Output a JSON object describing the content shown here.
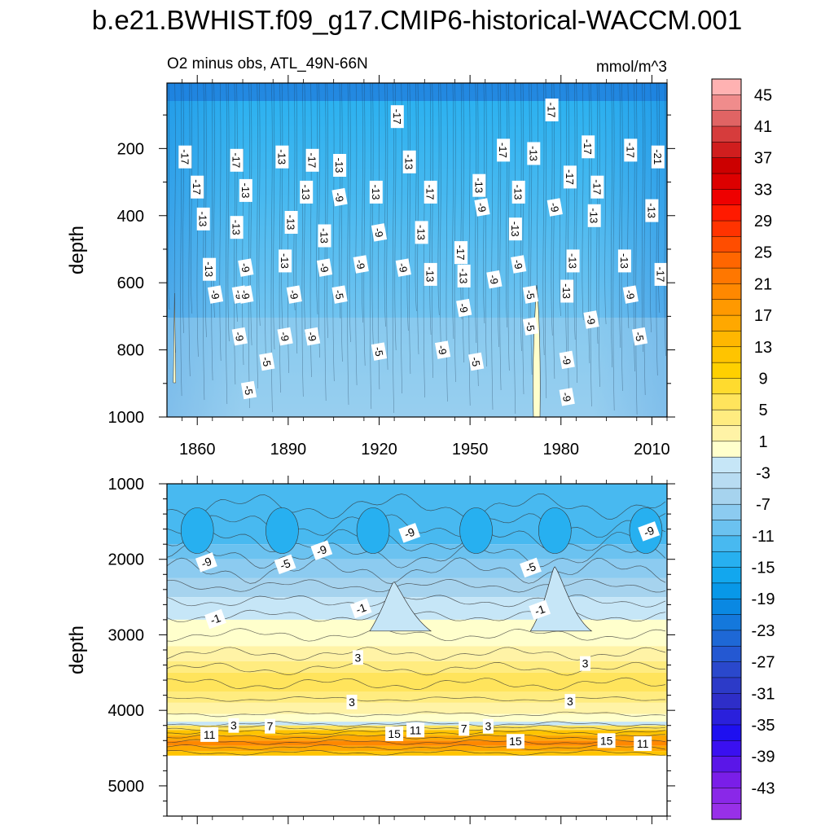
{
  "title": "b.e21.BWHIST.f09_g17.CMIP6-historical-WACCM.001",
  "chart_data": [
    {
      "type": "contour",
      "panel": "upper",
      "subtitle_left": "O2 minus obs, ATL_49N-66N",
      "subtitle_right": "mmol/m^3",
      "ylabel": "depth",
      "xlabel": "",
      "x_ticks": [
        "1860",
        "1890",
        "1920",
        "1950",
        "1980",
        "2010"
      ],
      "x_tick_values": [
        1860,
        1890,
        1920,
        1950,
        1980,
        2010
      ],
      "xlim": [
        1850,
        2015
      ],
      "y_ticks": [
        "200",
        "400",
        "600",
        "800",
        "1000"
      ],
      "y_tick_values": [
        200,
        400,
        600,
        800,
        1000
      ],
      "ylim": [
        1000,
        5
      ],
      "y_inverted": true,
      "grid": false,
      "contour_labels": [
        {
          "text": "-17",
          "x": 1856,
          "y": 225
        },
        {
          "text": "-17",
          "x": 1860,
          "y": 315
        },
        {
          "text": "-13",
          "x": 1862,
          "y": 410
        },
        {
          "text": "-13",
          "x": 1864,
          "y": 560
        },
        {
          "text": "-9",
          "x": 1866,
          "y": 635
        },
        {
          "text": "-17",
          "x": 1873,
          "y": 235
        },
        {
          "text": "-13",
          "x": 1873,
          "y": 435
        },
        {
          "text": "-9",
          "x": 1874,
          "y": 635
        },
        {
          "text": "-9",
          "x": 1874,
          "y": 760
        },
        {
          "text": "-13",
          "x": 1876,
          "y": 325
        },
        {
          "text": "-9",
          "x": 1876,
          "y": 555
        },
        {
          "text": "-9",
          "x": 1876,
          "y": 635
        },
        {
          "text": "-5",
          "x": 1877,
          "y": 920
        },
        {
          "text": "-5",
          "x": 1883,
          "y": 835
        },
        {
          "text": "-13",
          "x": 1888,
          "y": 225
        },
        {
          "text": "-13",
          "x": 1889,
          "y": 535
        },
        {
          "text": "-9",
          "x": 1889,
          "y": 760
        },
        {
          "text": "-13",
          "x": 1891,
          "y": 420
        },
        {
          "text": "-9",
          "x": 1892,
          "y": 635
        },
        {
          "text": "-13",
          "x": 1896,
          "y": 330
        },
        {
          "text": "-17",
          "x": 1898,
          "y": 235
        },
        {
          "text": "-9",
          "x": 1898,
          "y": 760
        },
        {
          "text": "-13",
          "x": 1902,
          "y": 460
        },
        {
          "text": "-9",
          "x": 1902,
          "y": 555
        },
        {
          "text": "-13",
          "x": 1907,
          "y": 250
        },
        {
          "text": "-9",
          "x": 1907,
          "y": 345
        },
        {
          "text": "-5",
          "x": 1907,
          "y": 635
        },
        {
          "text": "-9",
          "x": 1914,
          "y": 545
        },
        {
          "text": "-13",
          "x": 1919,
          "y": 330
        },
        {
          "text": "-9",
          "x": 1920,
          "y": 450
        },
        {
          "text": "-5",
          "x": 1920,
          "y": 805
        },
        {
          "text": "-17",
          "x": 1926,
          "y": 105
        },
        {
          "text": "-13",
          "x": 1930,
          "y": 240
        },
        {
          "text": "-9",
          "x": 1928,
          "y": 555
        },
        {
          "text": "-13",
          "x": 1934,
          "y": 450
        },
        {
          "text": "-17",
          "x": 1937,
          "y": 330
        },
        {
          "text": "-13",
          "x": 1937,
          "y": 575
        },
        {
          "text": "-9",
          "x": 1941,
          "y": 800
        },
        {
          "text": "-17",
          "x": 1947,
          "y": 510
        },
        {
          "text": "-13",
          "x": 1948,
          "y": 580
        },
        {
          "text": "-9",
          "x": 1948,
          "y": 675
        },
        {
          "text": "-5",
          "x": 1952,
          "y": 835
        },
        {
          "text": "-13",
          "x": 1953,
          "y": 310
        },
        {
          "text": "-9",
          "x": 1954,
          "y": 375
        },
        {
          "text": "-9",
          "x": 1958,
          "y": 590
        },
        {
          "text": "-17",
          "x": 1961,
          "y": 205
        },
        {
          "text": "-13",
          "x": 1965,
          "y": 440
        },
        {
          "text": "-13",
          "x": 1966,
          "y": 330
        },
        {
          "text": "-9",
          "x": 1966,
          "y": 545
        },
        {
          "text": "-13",
          "x": 1971,
          "y": 215
        },
        {
          "text": "-5",
          "x": 1970,
          "y": 635
        },
        {
          "text": "-5",
          "x": 1970,
          "y": 730
        },
        {
          "text": "-17",
          "x": 1977,
          "y": 85
        },
        {
          "text": "-9",
          "x": 1978,
          "y": 375
        },
        {
          "text": "-17",
          "x": 1983,
          "y": 285
        },
        {
          "text": "-13",
          "x": 1982,
          "y": 625
        },
        {
          "text": "-13",
          "x": 1984,
          "y": 535
        },
        {
          "text": "-9",
          "x": 1982,
          "y": 830
        },
        {
          "text": "-9",
          "x": 1982,
          "y": 940
        },
        {
          "text": "-17",
          "x": 1989,
          "y": 195
        },
        {
          "text": "-13",
          "x": 1991,
          "y": 400
        },
        {
          "text": "-17",
          "x": 1992,
          "y": 315
        },
        {
          "text": "-9",
          "x": 1990,
          "y": 710
        },
        {
          "text": "-13",
          "x": 2001,
          "y": 535
        },
        {
          "text": "-17",
          "x": 2003,
          "y": 205
        },
        {
          "text": "-9",
          "x": 2003,
          "y": 635
        },
        {
          "text": "-5",
          "x": 2006,
          "y": 760
        },
        {
          "text": "-21",
          "x": 2012,
          "y": 225
        },
        {
          "text": "-13",
          "x": 2010,
          "y": 385
        },
        {
          "text": "-17",
          "x": 2013,
          "y": 575
        }
      ],
      "field_description_levels": {
        "surface_band": -19,
        "upper_400m": -15,
        "mid_600m": -11,
        "deep_1000m": -7,
        "positive_anomaly_near_1972": 1
      }
    },
    {
      "type": "contour",
      "panel": "lower",
      "ylabel": "depth",
      "xlabel": "",
      "x_tick_values": [
        1860,
        1890,
        1920,
        1950,
        1980,
        2010
      ],
      "xlim": [
        1850,
        2015
      ],
      "y_ticks": [
        "1000",
        "2000",
        "3000",
        "4000",
        "5000"
      ],
      "y_tick_values": [
        1000,
        2000,
        3000,
        4000,
        5000
      ],
      "ylim": [
        1000,
        5400
      ],
      "y_inverted": true,
      "data_bottom_depth": 4600,
      "grid": false,
      "contour_labels": [
        {
          "text": "-9",
          "x": 1863,
          "y": 2040
        },
        {
          "text": "-9",
          "x": 1901,
          "y": 1880
        },
        {
          "text": "-5",
          "x": 1889,
          "y": 2065
        },
        {
          "text": "-9",
          "x": 1930,
          "y": 1650
        },
        {
          "text": "-9",
          "x": 2009,
          "y": 1630
        },
        {
          "text": "-5",
          "x": 1970,
          "y": 2110
        },
        {
          "text": "-1",
          "x": 1866,
          "y": 2790
        },
        {
          "text": "-1",
          "x": 1914,
          "y": 2650
        },
        {
          "text": "-1",
          "x": 1973,
          "y": 2670
        },
        {
          "text": "3",
          "x": 1913,
          "y": 3300
        },
        {
          "text": "3",
          "x": 1988,
          "y": 3380
        },
        {
          "text": "3",
          "x": 1911,
          "y": 3890
        },
        {
          "text": "3",
          "x": 1983,
          "y": 3880
        },
        {
          "text": "3",
          "x": 1872,
          "y": 4200
        },
        {
          "text": "7",
          "x": 1884,
          "y": 4210
        },
        {
          "text": "11",
          "x": 1864,
          "y": 4320
        },
        {
          "text": "15",
          "x": 1925,
          "y": 4310
        },
        {
          "text": "11",
          "x": 1932,
          "y": 4260
        },
        {
          "text": "7",
          "x": 1948,
          "y": 4240
        },
        {
          "text": "3",
          "x": 1956,
          "y": 4210
        },
        {
          "text": "15",
          "x": 1965,
          "y": 4410
        },
        {
          "text": "15",
          "x": 1995,
          "y": 4400
        },
        {
          "text": "11",
          "x": 2007,
          "y": 4440
        }
      ],
      "field_description_levels": {
        "1000_2000m": -11,
        "2500m": -3,
        "3000m": 1,
        "3600m_core": 7,
        "4000m": 3,
        "4200_4600m_bottom_layer": 15
      }
    }
  ],
  "colorbar": {
    "label_values": [
      "45",
      "41",
      "37",
      "33",
      "29",
      "25",
      "21",
      "17",
      "13",
      "9",
      "5",
      "1",
      "-3",
      "-7",
      "-11",
      "-15",
      "-19",
      "-23",
      "-27",
      "-31",
      "-35",
      "-39",
      "-43"
    ],
    "levels_min": -47,
    "levels_max": 47,
    "step": 2,
    "colors_top_to_bottom": [
      "#ffb2b2",
      "#f08c8c",
      "#e06464",
      "#d63c3c",
      "#d01e1e",
      "#cc0000",
      "#dd0000",
      "#ee0000",
      "#ff1a00",
      "#ff3300",
      "#ff4d00",
      "#ff6600",
      "#ff7700",
      "#ff8800",
      "#ff9900",
      "#ffa800",
      "#ffb700",
      "#ffc400",
      "#ffd000",
      "#ffdb2e",
      "#ffe45c",
      "#ffec80",
      "#fff3a6",
      "#ffffcc",
      "#c6e6f7",
      "#b8dcf2",
      "#a6d3ee",
      "#8ccbf0",
      "#6bc2f0",
      "#48b9f0",
      "#27b0f0",
      "#12a7ee",
      "#0898e8",
      "#0a88e2",
      "#1478dc",
      "#1e68d6",
      "#2458d2",
      "#2a48cc",
      "#2c3ac8",
      "#2e2ec8",
      "#2a20dc",
      "#1e10f0",
      "#3a10f0",
      "#5a16e8",
      "#7a1ee8",
      "#8a28e8",
      "#9830e8"
    ]
  }
}
